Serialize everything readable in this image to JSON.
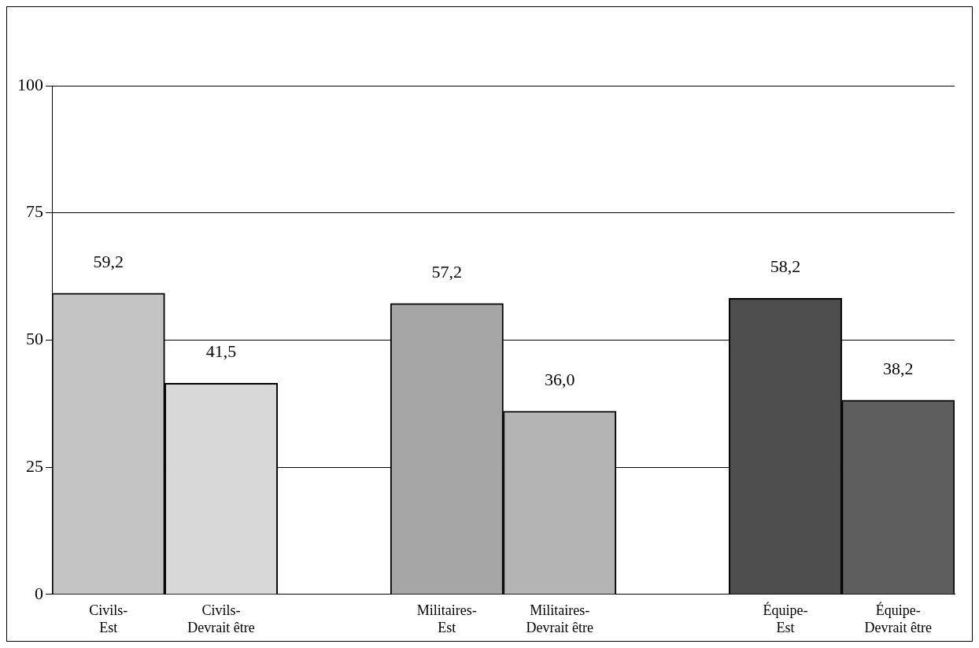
{
  "chart_data": {
    "type": "bar",
    "categories": [
      "Civils-Est",
      "Civils-Devrait être",
      null,
      "Militaires-Est",
      "Militaires-Devrait être",
      null,
      "Équipe-Est",
      "Équipe-Devrait être"
    ],
    "values": [
      59.2,
      41.5,
      null,
      57.2,
      36.0,
      null,
      58.2,
      38.2
    ],
    "colors": [
      "#c4c4c4",
      "#d8d8d8",
      null,
      "#a6a6a6",
      "#b4b4b4",
      null,
      "#4e4e4e",
      "#5e5e5e"
    ],
    "value_labels": [
      "59,2",
      "41,5",
      null,
      "57,2",
      "36,0",
      null,
      "58,2",
      "38,2"
    ],
    "ylim": [
      0,
      100
    ],
    "yticks": [
      0,
      25,
      50,
      75,
      100
    ],
    "grid": "y"
  }
}
